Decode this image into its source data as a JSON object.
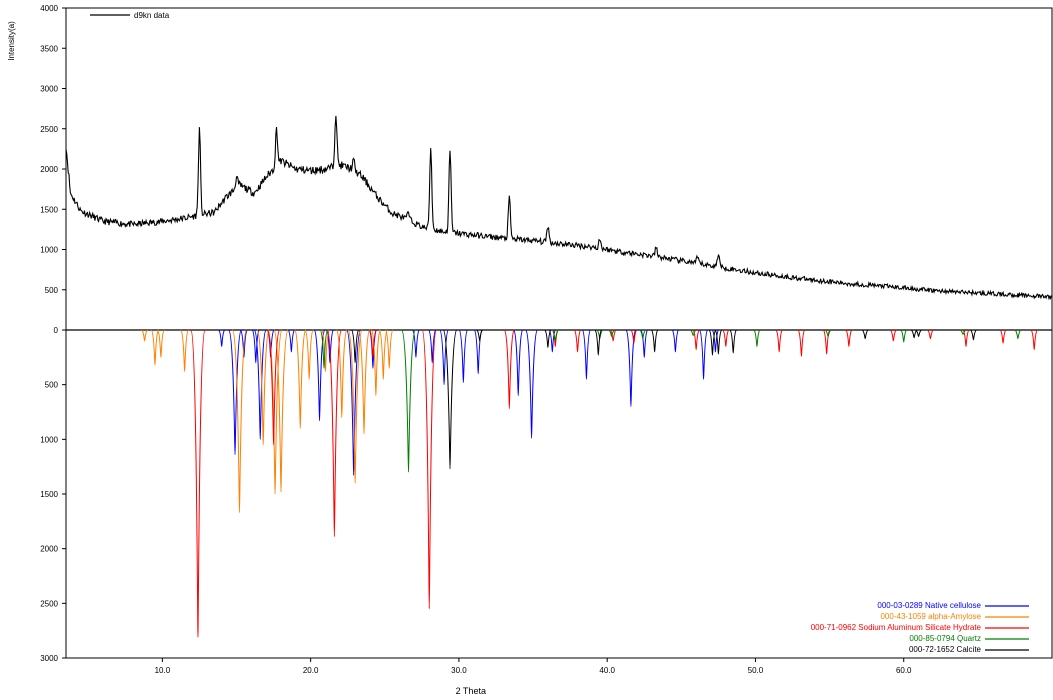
{
  "chart_data": {
    "type": "line",
    "xlabel": "2 Theta",
    "ylabel": "Intensity(a)",
    "xlim": [
      3.5,
      70
    ],
    "x_ticks": [
      "10.0",
      "20.0",
      "30.0",
      "40.0",
      "50.0",
      "60.0"
    ],
    "top_panel": {
      "ylim": [
        0,
        4000
      ],
      "y_ticks": [
        "0",
        "500",
        "1000",
        "1500",
        "2000",
        "2500",
        "3000",
        "3500",
        "4000"
      ],
      "legend_label": "d9kn data",
      "legend_position": "top-left",
      "color": "#000000",
      "baseline": [
        [
          3.5,
          2300
        ],
        [
          3.8,
          1700
        ],
        [
          4.5,
          1480
        ],
        [
          6,
          1350
        ],
        [
          8,
          1310
        ],
        [
          10,
          1350
        ],
        [
          11.5,
          1390
        ],
        [
          12.3,
          1420
        ],
        [
          13.5,
          1460
        ],
        [
          14.3,
          1650
        ],
        [
          15.2,
          1800
        ],
        [
          16.2,
          1700
        ],
        [
          17,
          1900
        ],
        [
          18,
          2100
        ],
        [
          19,
          2000
        ],
        [
          20,
          1980
        ],
        [
          21,
          2000
        ],
        [
          22,
          2050
        ],
        [
          22.8,
          2000
        ],
        [
          23.5,
          1900
        ],
        [
          24.5,
          1650
        ],
        [
          25.5,
          1450
        ],
        [
          26.5,
          1380
        ],
        [
          27.5,
          1280
        ],
        [
          29,
          1220
        ],
        [
          31,
          1180
        ],
        [
          33,
          1140
        ],
        [
          35,
          1110
        ],
        [
          37,
          1070
        ],
        [
          39,
          1030
        ],
        [
          41,
          970
        ],
        [
          43,
          920
        ],
        [
          45,
          860
        ],
        [
          47,
          800
        ],
        [
          50,
          710
        ],
        [
          53,
          640
        ],
        [
          56,
          580
        ],
        [
          59,
          540
        ],
        [
          62,
          490
        ],
        [
          65,
          460
        ],
        [
          68,
          430
        ],
        [
          70,
          410
        ]
      ],
      "peaks": [
        [
          12.5,
          2480
        ],
        [
          15.0,
          1900
        ],
        [
          17.7,
          2500
        ],
        [
          21.7,
          2720
        ],
        [
          22.9,
          2100
        ],
        [
          26.6,
          1450
        ],
        [
          28.1,
          2270
        ],
        [
          29.4,
          2230
        ],
        [
          33.4,
          1640
        ],
        [
          36.0,
          1300
        ],
        [
          39.5,
          1130
        ],
        [
          43.3,
          1020
        ],
        [
          46.1,
          900
        ],
        [
          47.5,
          950
        ]
      ]
    },
    "bottom_panel": {
      "ylim": [
        0,
        3000
      ],
      "y_ticks": [
        "0",
        "500",
        "1000",
        "1500",
        "2000",
        "2500",
        "3000"
      ],
      "inverted": true,
      "series": [
        {
          "name": "000-03-0289 Native cellulose",
          "color": "#0000ff",
          "peaks": [
            [
              14.0,
              150
            ],
            [
              14.9,
              1140
            ],
            [
              15.5,
              250
            ],
            [
              16.3,
              300
            ],
            [
              16.6,
              1000
            ],
            [
              17.3,
              250
            ],
            [
              18.7,
              200
            ],
            [
              20.6,
              830
            ],
            [
              21.3,
              300
            ],
            [
              22.9,
              1330
            ],
            [
              24.2,
              350
            ],
            [
              27.1,
              250
            ],
            [
              28.2,
              300
            ],
            [
              29.0,
              500
            ],
            [
              30.3,
              480
            ],
            [
              31.3,
              400
            ],
            [
              34.0,
              600
            ],
            [
              34.9,
              990
            ],
            [
              36.3,
              200
            ],
            [
              38.6,
              450
            ],
            [
              41.6,
              700
            ],
            [
              42.5,
              250
            ],
            [
              44.6,
              200
            ],
            [
              46.5,
              450
            ],
            [
              47.3,
              200
            ]
          ]
        },
        {
          "name": "000-43-1059 alpha-Amylose",
          "color": "#ff8000",
          "peaks": [
            [
              8.8,
              100
            ],
            [
              9.5,
              320
            ],
            [
              9.9,
              250
            ],
            [
              11.5,
              380
            ],
            [
              15.2,
              1670
            ],
            [
              16.8,
              1050
            ],
            [
              17.6,
              1500
            ],
            [
              18.0,
              1480
            ],
            [
              19.3,
              900
            ],
            [
              19.9,
              450
            ],
            [
              21.0,
              380
            ],
            [
              22.1,
              800
            ],
            [
              23.0,
              1400
            ],
            [
              23.6,
              950
            ],
            [
              24.4,
              600
            ],
            [
              24.9,
              450
            ],
            [
              25.3,
              350
            ]
          ]
        },
        {
          "name": "000-71-0962 Sodium Aluminum Silicate Hydrate",
          "color": "#ff0000",
          "peaks": [
            [
              12.4,
              2810
            ],
            [
              17.5,
              1050
            ],
            [
              21.6,
              1890
            ],
            [
              24.2,
              250
            ],
            [
              28.0,
              2550
            ],
            [
              33.4,
              720
            ],
            [
              36.5,
              150
            ],
            [
              38.0,
              200
            ],
            [
              40.4,
              100
            ],
            [
              41.8,
              120
            ],
            [
              46.0,
              180
            ],
            [
              48.0,
              150
            ],
            [
              51.6,
              200
            ],
            [
              53.1,
              240
            ],
            [
              54.8,
              220
            ],
            [
              56.3,
              150
            ],
            [
              59.3,
              100
            ],
            [
              61.8,
              80
            ],
            [
              64.2,
              150
            ],
            [
              66.7,
              120
            ],
            [
              68.8,
              180
            ]
          ]
        },
        {
          "name": "000-85-0794 Quartz",
          "color": "#008000",
          "peaks": [
            [
              20.9,
              350
            ],
            [
              26.6,
              1300
            ],
            [
              36.5,
              100
            ],
            [
              39.5,
              80
            ],
            [
              40.3,
              60
            ],
            [
              42.4,
              80
            ],
            [
              45.8,
              50
            ],
            [
              50.1,
              150
            ],
            [
              54.9,
              60
            ],
            [
              60.0,
              110
            ],
            [
              64.0,
              40
            ],
            [
              67.7,
              80
            ]
          ]
        },
        {
          "name": "000-72-1652 Calcite",
          "color": "#000000",
          "peaks": [
            [
              23.0,
              300
            ],
            [
              29.4,
              1270
            ],
            [
              31.4,
              100
            ],
            [
              36.0,
              160
            ],
            [
              39.4,
              230
            ],
            [
              43.2,
              200
            ],
            [
              47.1,
              230
            ],
            [
              47.5,
              220
            ],
            [
              48.5,
              210
            ],
            [
              57.4,
              80
            ],
            [
              60.7,
              70
            ],
            [
              61.0,
              60
            ],
            [
              64.7,
              90
            ]
          ]
        }
      ]
    }
  }
}
